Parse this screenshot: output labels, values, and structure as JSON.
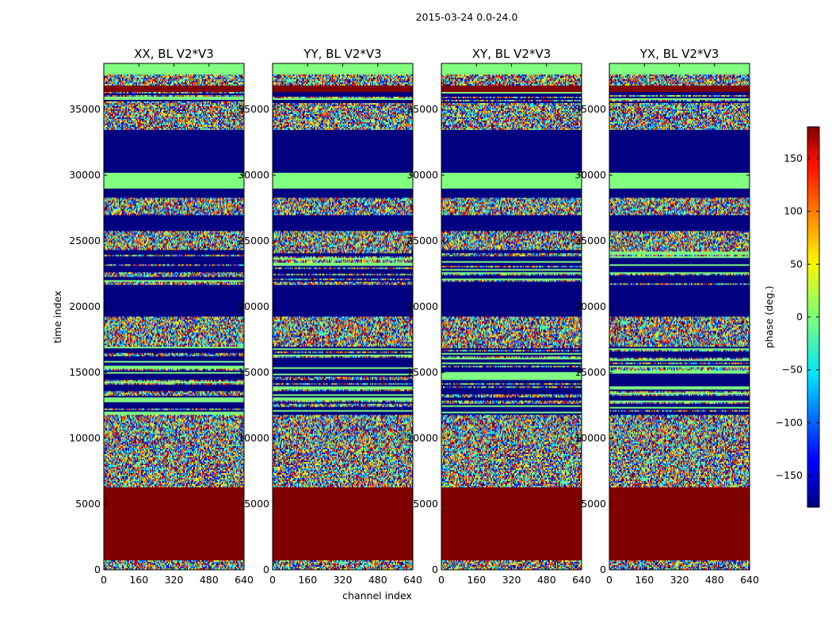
{
  "chart_data": {
    "type": "heatmap",
    "suptitle": "2015-03-24 0.0-24.0",
    "xlabel": "channel index",
    "ylabel": "time index",
    "xlim": [
      0,
      640
    ],
    "ylim": [
      0,
      38500
    ],
    "xticks": [
      0,
      160,
      320,
      480,
      640
    ],
    "yticks": [
      0,
      5000,
      10000,
      15000,
      20000,
      25000,
      30000,
      35000
    ],
    "panels": [
      {
        "title": "XX, BL V2*V3"
      },
      {
        "title": "YY, BL V2*V3"
      },
      {
        "title": "XY, BL V2*V3"
      },
      {
        "title": "YX, BL V2*V3"
      }
    ],
    "colorbar": {
      "label": "phase (deg.)",
      "min": -180,
      "max": 180,
      "ticks": [
        -150,
        -100,
        -50,
        0,
        50,
        100,
        150
      ],
      "colormap": "jet"
    },
    "bands": [
      {
        "y0": 0,
        "y1": 700,
        "kind": "noise"
      },
      {
        "y0": 700,
        "y1": 6300,
        "kind": "solid",
        "value": 180
      },
      {
        "y0": 6300,
        "y1": 11800,
        "kind": "noise"
      },
      {
        "y0": 11800,
        "y1": 17000,
        "kind": "stripes"
      },
      {
        "y0": 17000,
        "y1": 19300,
        "kind": "noise"
      },
      {
        "y0": 19300,
        "y1": 20500,
        "kind": "solid",
        "value": -180
      },
      {
        "y0": 20500,
        "y1": 21700,
        "kind": "solid",
        "value": -180
      },
      {
        "y0": 21700,
        "y1": 24300,
        "kind": "stripes"
      },
      {
        "y0": 24300,
        "y1": 25800,
        "kind": "noise"
      },
      {
        "y0": 25800,
        "y1": 27000,
        "kind": "solid",
        "value": -180
      },
      {
        "y0": 27000,
        "y1": 28300,
        "kind": "noise"
      },
      {
        "y0": 28300,
        "y1": 29000,
        "kind": "solid",
        "value": -180
      },
      {
        "y0": 29000,
        "y1": 30200,
        "kind": "solid",
        "value": 0
      },
      {
        "y0": 30200,
        "y1": 33500,
        "kind": "solid",
        "value": -180
      },
      {
        "y0": 33500,
        "y1": 35500,
        "kind": "noise"
      },
      {
        "y0": 35500,
        "y1": 36300,
        "kind": "stripes"
      },
      {
        "y0": 36300,
        "y1": 36800,
        "kind": "solid",
        "value": 180
      },
      {
        "y0": 36800,
        "y1": 37600,
        "kind": "noise"
      },
      {
        "y0": 37600,
        "y1": 38500,
        "kind": "solid",
        "value": 0
      }
    ]
  }
}
